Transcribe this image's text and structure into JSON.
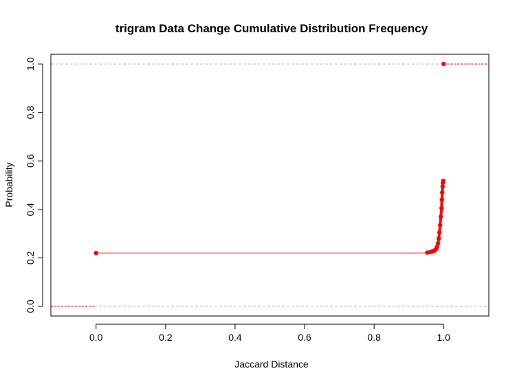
{
  "chart_data": {
    "type": "line",
    "title": "trigram Data Change Cumulative Distribution Frequency",
    "xlabel": "Jaccard Distance",
    "ylabel": "Probability",
    "xlim": [
      -0.13,
      1.13
    ],
    "ylim": [
      -0.04,
      1.04
    ],
    "x_ticks": [
      0.0,
      0.2,
      0.4,
      0.6,
      0.8,
      1.0
    ],
    "x_tick_labels": [
      "0.0",
      "0.2",
      "0.4",
      "0.6",
      "0.8",
      "1.0"
    ],
    "y_ticks": [
      0.0,
      0.2,
      0.4,
      0.6,
      0.8,
      1.0
    ],
    "y_tick_labels": [
      "0.0",
      "0.2",
      "0.4",
      "0.6",
      "0.8",
      "1.0"
    ],
    "reference_lines_y": [
      0.0,
      1.0
    ],
    "grid": false,
    "legend": "none",
    "series": [
      {
        "color": "#ff0000",
        "step": true,
        "left_tail": {
          "x": [
            -0.13,
            0.0
          ],
          "y": 0.0
        },
        "right_tail": {
          "x": [
            1.0,
            1.13
          ],
          "y": 1.0
        },
        "points": [
          {
            "x": 0.0,
            "y": 0.22
          },
          {
            "x": 0.953,
            "y": 0.222
          },
          {
            "x": 0.962,
            "y": 0.224
          },
          {
            "x": 0.968,
            "y": 0.227
          },
          {
            "x": 0.973,
            "y": 0.23
          },
          {
            "x": 0.977,
            "y": 0.235
          },
          {
            "x": 0.981,
            "y": 0.245
          },
          {
            "x": 0.984,
            "y": 0.26
          },
          {
            "x": 0.986,
            "y": 0.28
          },
          {
            "x": 0.988,
            "y": 0.305
          },
          {
            "x": 0.99,
            "y": 0.335
          },
          {
            "x": 0.992,
            "y": 0.37
          },
          {
            "x": 0.994,
            "y": 0.405
          },
          {
            "x": 0.995,
            "y": 0.44
          },
          {
            "x": 0.996,
            "y": 0.47
          },
          {
            "x": 0.997,
            "y": 0.495
          },
          {
            "x": 0.998,
            "y": 0.51
          },
          {
            "x": 0.999,
            "y": 0.518
          },
          {
            "x": 1.0,
            "y": 1.0
          }
        ]
      }
    ]
  }
}
